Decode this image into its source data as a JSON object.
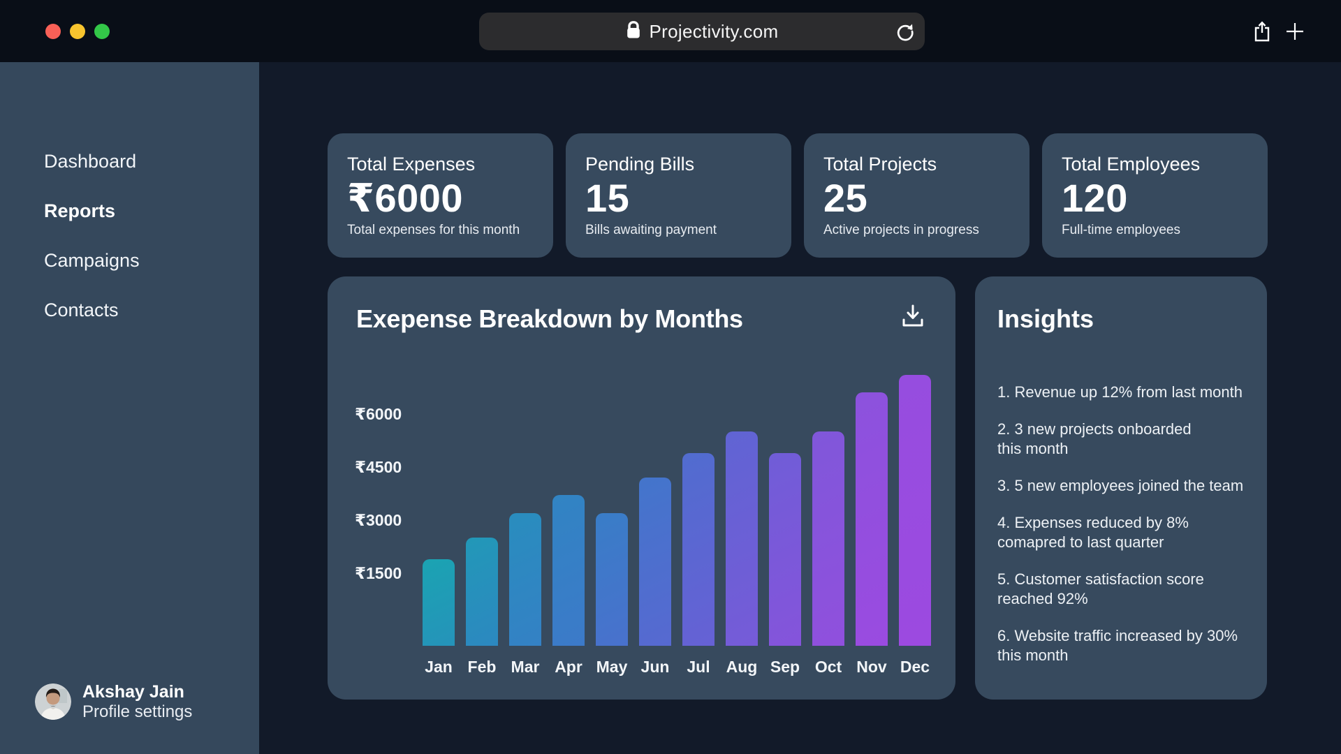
{
  "browser": {
    "url_text": "Projectivity.com",
    "traffic_light_colors": [
      "#F96057",
      "#F8C42E",
      "#33C748"
    ]
  },
  "sidebar": {
    "items": [
      {
        "label": "Dashboard",
        "active": false
      },
      {
        "label": "Reports",
        "active": true
      },
      {
        "label": "Campaigns",
        "active": false
      },
      {
        "label": "Contacts",
        "active": false
      }
    ],
    "profile": {
      "name": "Akshay Jain",
      "subtitle": "Profile settings"
    }
  },
  "stats": [
    {
      "title": "Total Expenses",
      "value": "₹6000",
      "caption": "Total expenses for this month"
    },
    {
      "title": "Pending Bills",
      "value": "15",
      "caption": "Bills awaiting payment"
    },
    {
      "title": "Total Projects",
      "value": "25",
      "caption": "Active projects in progress"
    },
    {
      "title": "Total Employees",
      "value": "120",
      "caption": "Full-time employees"
    }
  ],
  "chart_data": {
    "type": "bar",
    "title": "Exepense Breakdown by Months",
    "categories": [
      "Jan",
      "Feb",
      "Mar",
      "Apr",
      "May",
      "Jun",
      "Jul",
      "Aug",
      "Sep",
      "Oct",
      "Nov",
      "Dec"
    ],
    "values": [
      1900,
      2500,
      3200,
      3700,
      3200,
      4200,
      4900,
      5500,
      4900,
      5500,
      6600,
      7100
    ],
    "currency": "₹",
    "y_axis_labels": [
      "₹6000",
      "₹4500",
      "₹3000",
      "₹1500"
    ],
    "y_axis_values": [
      6000,
      4500,
      3000,
      1500
    ],
    "ylim": [
      0,
      7500
    ],
    "grid": false,
    "legend": false,
    "bar_color_stops": [
      "#1BA3B2",
      "#2B89C0",
      "#3E78CA",
      "#5F64D3",
      "#8455DB",
      "#9C4AE0"
    ]
  },
  "insights": {
    "title": "Insights",
    "items": [
      "1. Revenue up 12% from last month",
      "2. 3 new projects onboarded\nthis month",
      "3. 5 new employees joined the team",
      "4. Expenses reduced by 8%\ncomapred to last quarter",
      "5. Customer satisfaction score\nreached 92%",
      "6. Website traffic increased by 30%\nthis month"
    ]
  }
}
